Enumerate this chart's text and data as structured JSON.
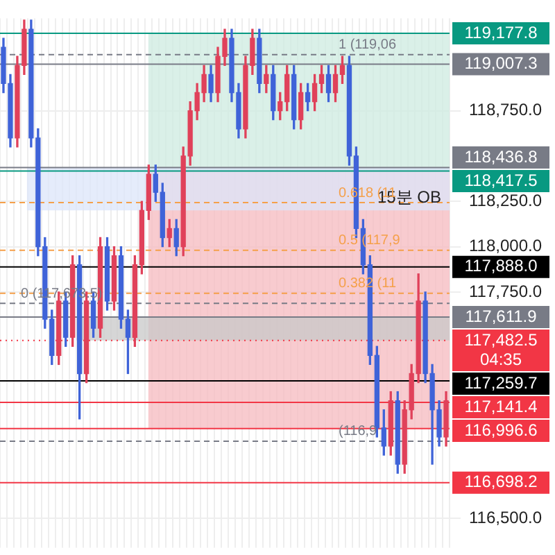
{
  "chart_data": {
    "type": "candlestick",
    "categories": [
      null,
      null,
      null,
      null,
      null,
      null,
      null,
      null,
      null,
      null,
      null,
      null,
      null,
      null,
      null,
      null,
      null,
      null,
      null,
      null,
      null,
      null,
      null,
      null,
      null,
      null,
      null,
      null,
      null,
      null,
      null,
      null,
      null,
      null,
      null,
      null,
      null,
      null,
      null,
      null,
      null,
      null,
      null,
      null,
      null,
      null,
      null,
      null,
      null,
      null,
      null,
      null,
      null,
      null,
      null,
      null,
      null,
      null,
      null,
      null,
      null,
      null,
      null,
      null,
      null
    ],
    "ohlc": [
      [
        119100,
        119150,
        118850,
        118900
      ],
      [
        118900,
        118950,
        118550,
        118600
      ],
      [
        118600,
        119050,
        118550,
        119000
      ],
      [
        119000,
        119250,
        118950,
        119200
      ],
      [
        119200,
        119250,
        118550,
        118600
      ],
      [
        118600,
        118650,
        117950,
        118000
      ],
      [
        118000,
        118050,
        117550,
        117600
      ],
      [
        117600,
        117650,
        117350,
        117400
      ],
      [
        117400,
        117750,
        117350,
        117700
      ],
      [
        117700,
        117750,
        117450,
        117500
      ],
      [
        117500,
        117950,
        117450,
        117900
      ],
      [
        117900,
        117950,
        117050,
        117300
      ],
      [
        117300,
        117750,
        117250,
        117700
      ],
      [
        117700,
        117750,
        117500,
        117550
      ],
      [
        117550,
        118050,
        117500,
        118000
      ],
      [
        118000,
        118050,
        117650,
        117700
      ],
      [
        117700,
        118000,
        117650,
        117950
      ],
      [
        117950,
        118000,
        117550,
        117600
      ],
      [
        117600,
        117650,
        117300,
        117500
      ],
      [
        117500,
        117950,
        117450,
        117900
      ],
      [
        117900,
        118250,
        117850,
        118200
      ],
      [
        118200,
        118450,
        118150,
        118400
      ],
      [
        118400,
        118450,
        118250,
        118300
      ],
      [
        118300,
        118350,
        118000,
        118050
      ],
      [
        118050,
        118150,
        118000,
        118100
      ],
      [
        118100,
        118150,
        117950,
        118000
      ],
      [
        118000,
        118550,
        117950,
        118500
      ],
      [
        118500,
        118800,
        118450,
        118750
      ],
      [
        118750,
        118900,
        118700,
        118850
      ],
      [
        118850,
        119000,
        118800,
        118950
      ],
      [
        118950,
        119000,
        118800,
        118850
      ],
      [
        118850,
        119100,
        118800,
        119050
      ],
      [
        119050,
        119200,
        119000,
        119150
      ],
      [
        119150,
        119200,
        118800,
        118850
      ],
      [
        118850,
        118900,
        118600,
        118650
      ],
      [
        118650,
        119050,
        118600,
        119000
      ],
      [
        119000,
        119200,
        118950,
        119150
      ],
      [
        119150,
        119200,
        118850,
        118900
      ],
      [
        118900,
        119000,
        118850,
        118950
      ],
      [
        118950,
        119000,
        118700,
        118750
      ],
      [
        118750,
        118850,
        118700,
        118800
      ],
      [
        118800,
        119000,
        118750,
        118950
      ],
      [
        118950,
        119000,
        118650,
        118700
      ],
      [
        118700,
        118900,
        118650,
        118850
      ],
      [
        118850,
        118900,
        118750,
        118800
      ],
      [
        118800,
        118950,
        118750,
        118900
      ],
      [
        118900,
        119000,
        118850,
        118950
      ],
      [
        118950,
        119000,
        118800,
        118850
      ],
      [
        118850,
        119000,
        118800,
        118950
      ],
      [
        118950,
        119050,
        118900,
        119000
      ],
      [
        119000,
        119050,
        118450,
        118500
      ],
      [
        118500,
        118550,
        118050,
        118100
      ],
      [
        118100,
        118150,
        117850,
        117900
      ],
      [
        117900,
        117950,
        117350,
        117400
      ],
      [
        117400,
        117450,
        116950,
        117000
      ],
      [
        117000,
        117100,
        116850,
        116900
      ],
      [
        116900,
        117200,
        116850,
        117150
      ],
      [
        117150,
        117200,
        116750,
        116800
      ],
      [
        116800,
        117150,
        116750,
        117100
      ],
      [
        117100,
        117350,
        117050,
        117300
      ],
      [
        117300,
        117850,
        117250,
        117700
      ],
      [
        117700,
        117750,
        117250,
        117300
      ],
      [
        117300,
        117350,
        116800,
        117100
      ],
      [
        117100,
        117150,
        116900,
        116950
      ],
      [
        116950,
        117200,
        116900,
        117150
      ]
    ],
    "colors": [
      "#3f63d8",
      "#3f63d8",
      "#e0415a",
      "#e0415a",
      "#3f63d8",
      "#3f63d8",
      "#3f63d8",
      "#3f63d8",
      "#e0415a",
      "#3f63d8",
      "#e0415a",
      "#3f63d8",
      "#e0415a",
      "#3f63d8",
      "#e0415a",
      "#3f63d8",
      "#e0415a",
      "#3f63d8",
      "#3f63d8",
      "#e0415a",
      "#e0415a",
      "#e0415a",
      "#3f63d8",
      "#3f63d8",
      "#e0415a",
      "#3f63d8",
      "#e0415a",
      "#e0415a",
      "#e0415a",
      "#e0415a",
      "#3f63d8",
      "#e0415a",
      "#e0415a",
      "#3f63d8",
      "#3f63d8",
      "#e0415a",
      "#e0415a",
      "#3f63d8",
      "#e0415a",
      "#3f63d8",
      "#e0415a",
      "#e0415a",
      "#3f63d8",
      "#e0415a",
      "#3f63d8",
      "#e0415a",
      "#e0415a",
      "#3f63d8",
      "#e0415a",
      "#e0415a",
      "#3f63d8",
      "#3f63d8",
      "#3f63d8",
      "#3f63d8",
      "#3f63d8",
      "#3f63d8",
      "#e0415a",
      "#3f63d8",
      "#e0415a",
      "#e0415a",
      "#e0415a",
      "#3f63d8",
      "#3f63d8",
      "#3f63d8",
      "#e0415a"
    ],
    "ylim": [
      116400,
      119260
    ],
    "yticks": [
      {
        "value": 116500,
        "label": "116,500.0"
      },
      {
        "value": 117750,
        "label": "117,750.0"
      },
      {
        "value": 118000,
        "label": "118,000.0"
      },
      {
        "value": 118250,
        "label": "118,250.0"
      },
      {
        "value": 118750,
        "label": "118,750.0"
      }
    ],
    "tick_labels": "y",
    "grid": true,
    "bands": [
      {
        "axis": "y",
        "from": 118417.5,
        "to": 119177.8,
        "color": "#cdebe0"
      },
      {
        "axis": "y",
        "from": 116996.6,
        "to": 118417.5,
        "color": "#f6b9bf"
      },
      {
        "axis": "y",
        "from": 118200,
        "to": 118436.8,
        "color": "#dce6fa"
      },
      {
        "axis": "y",
        "from": 117482.5,
        "to": 117611.9,
        "color": "#c8c8c8"
      }
    ],
    "ref_lines": [
      {
        "axis": "y",
        "value": 119177.8,
        "label": "119,177.8",
        "color": "#089981"
      },
      {
        "axis": "y",
        "value": 119007.3,
        "label": "119,007.3",
        "color": "#787b86"
      },
      {
        "axis": "y",
        "value": 118436.8,
        "label": "118,436.8",
        "color": "#787b86"
      },
      {
        "axis": "y",
        "value": 118417.5,
        "label": "118,417.5",
        "color": "#089981"
      },
      {
        "axis": "y",
        "value": 117888.0,
        "label": "117,888.0",
        "color": "#000000"
      },
      {
        "axis": "y",
        "value": 117611.9,
        "label": "117,611.9",
        "color": "#787b86"
      },
      {
        "axis": "y",
        "value": 117482.5,
        "label": "117,482.5\n04:35",
        "color": "#f23645",
        "line_style": "dotted"
      },
      {
        "axis": "y",
        "value": 117259.7,
        "label": "117,259.7",
        "color": "#000000"
      },
      {
        "axis": "y",
        "value": 117141.4,
        "label": "117,141.4",
        "color": "#f23645"
      },
      {
        "axis": "y",
        "value": 116996.6,
        "label": "116,996.6",
        "color": "#f23645"
      },
      {
        "axis": "y",
        "value": 116698.2,
        "label": "116,698.2",
        "color": "#f23645"
      },
      {
        "axis": "y",
        "value": 119060,
        "color": "#787b86",
        "line_style": "dashed"
      },
      {
        "axis": "y",
        "value": 118243,
        "color": "#f5a04a",
        "line_style": "dashed"
      },
      {
        "axis": "y",
        "value": 117980,
        "color": "#f5a04a",
        "line_style": "dashed"
      },
      {
        "axis": "y",
        "value": 117743,
        "color": "#f5a04a",
        "line_style": "dashed"
      },
      {
        "axis": "y",
        "value": 117687,
        "color": "#787b86",
        "line_style": "dashed"
      },
      {
        "axis": "y",
        "value": 116927,
        "color": "#787b86",
        "line_style": "dashed"
      }
    ],
    "annotations": [
      "15분 OB",
      {
        "text": "1 (119,06",
        "y": 119060
      },
      {
        "text": "0.618 (11",
        "y": 118243
      },
      {
        "text": "0.5 (117,9",
        "y": 117980
      },
      {
        "text": "0.382 (11",
        "y": 117743
      },
      {
        "text": "0 (117,673.5)",
        "y": 117687
      },
      {
        "text": "(116,9",
        "y": 116927
      }
    ]
  }
}
